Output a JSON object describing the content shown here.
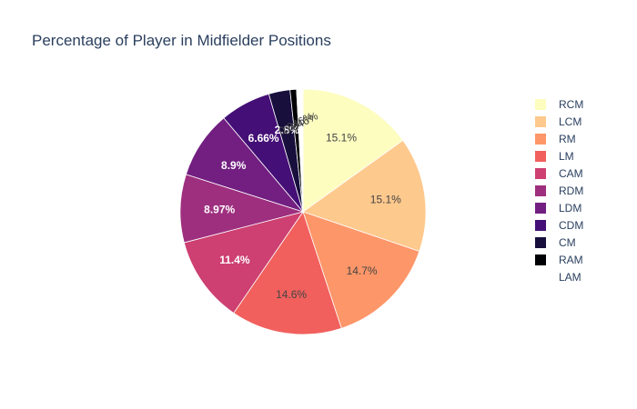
{
  "chart_data": {
    "type": "pie",
    "title": "Percentage of Player in Midfielder Positions",
    "legend_position": "right",
    "slices": [
      {
        "label": "RCM",
        "value": 15.1,
        "text": "15.1%",
        "color": "#fcfdbf",
        "text_color": "#444444"
      },
      {
        "label": "LCM",
        "value": 15.1,
        "text": "15.1%",
        "color": "#fec98d",
        "text_color": "#444444"
      },
      {
        "label": "RM",
        "value": 14.7,
        "text": "14.7%",
        "color": "#fd9668",
        "text_color": "#444444"
      },
      {
        "label": "LM",
        "value": 14.6,
        "text": "14.6%",
        "color": "#f1605d",
        "text_color": "#444444"
      },
      {
        "label": "CAM",
        "value": 11.4,
        "text": "11.4%",
        "color": "#cd4071",
        "text_color": "#ffffff"
      },
      {
        "label": "RDM",
        "value": 8.97,
        "text": "8.97%",
        "color": "#9e2f7f",
        "text_color": "#ffffff"
      },
      {
        "label": "LDM",
        "value": 8.9,
        "text": "8.9%",
        "color": "#721f81",
        "text_color": "#ffffff"
      },
      {
        "label": "CDM",
        "value": 6.66,
        "text": "6.66%",
        "color": "#440f76",
        "text_color": "#ffffff"
      },
      {
        "label": "CM",
        "value": 2.8,
        "text": "2.8%",
        "color": "#180f3d",
        "text_color": "#ffffff"
      },
      {
        "label": "RAM",
        "value": 0.846,
        "text": "0.846%",
        "color": "#000004",
        "text_color": "#444444"
      },
      {
        "label": "LAM",
        "value": 0.846,
        "text": "0.846%",
        "color": "#ffffff",
        "text_color": "#444444"
      }
    ]
  }
}
